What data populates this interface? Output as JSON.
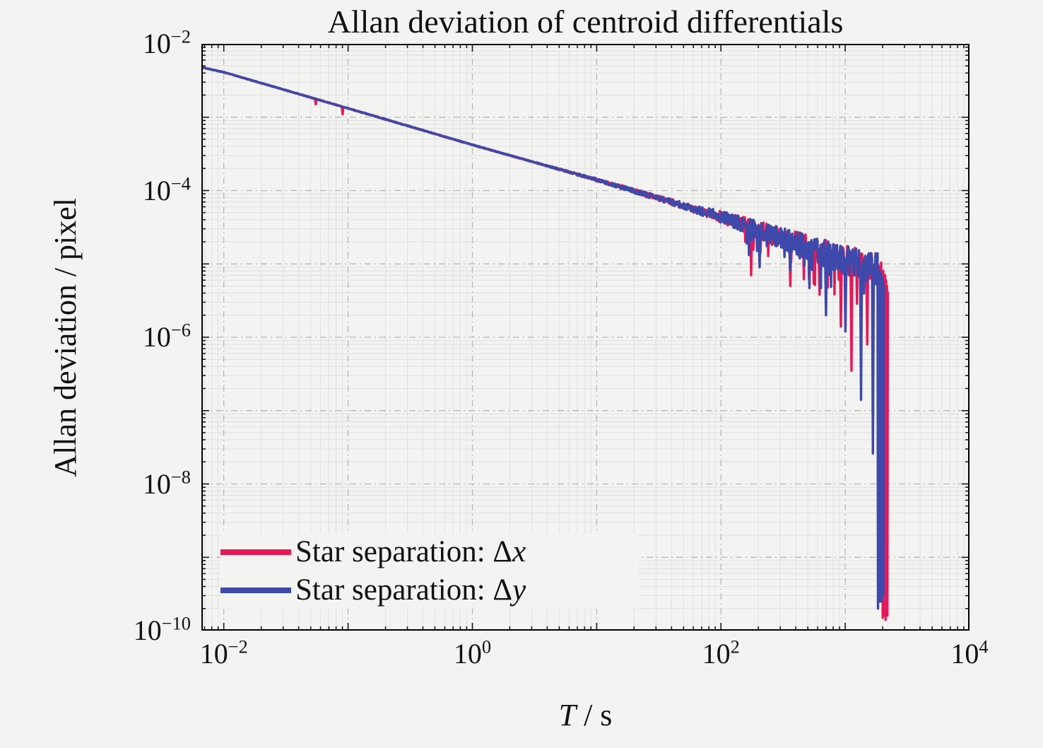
{
  "figure": {
    "background": "#f3f3f1",
    "axis_color": "#1a1a1a",
    "grid_major_color": "#b9b9b9",
    "grid_minor_color": "#e0e0e0"
  },
  "chart_data": {
    "type": "line",
    "title": "Allan deviation of centroid differentials",
    "xlabel": "T / s",
    "xlabel_var": "T",
    "xlabel_rest": " / s",
    "ylabel": "Allan deviation / pixel",
    "x_scale": "log",
    "y_scale": "log",
    "xlim": [
      0.0066,
      10000
    ],
    "ylim": [
      1e-10,
      0.01
    ],
    "grid": true,
    "legend_position": "bottom-left-inside",
    "x_ticks": [
      {
        "base": "10",
        "exp": "−2",
        "value": 0.01
      },
      {
        "base": "10",
        "exp": "0",
        "value": 1
      },
      {
        "base": "10",
        "exp": "2",
        "value": 100
      },
      {
        "base": "10",
        "exp": "4",
        "value": 10000
      }
    ],
    "y_ticks": [
      {
        "base": "10",
        "exp": "−2",
        "value": 0.01
      },
      {
        "base": "10",
        "exp": "−4",
        "value": 0.0001
      },
      {
        "base": "10",
        "exp": "−6",
        "value": 1e-06
      },
      {
        "base": "10",
        "exp": "−8",
        "value": 1e-08
      },
      {
        "base": "10",
        "exp": "−10",
        "value": 1e-10
      }
    ],
    "series": [
      {
        "name": "Star separation: Δx",
        "label_prefix": "Star separation: Δ",
        "label_var": "x",
        "color": "#e5195a",
        "seed": 7,
        "n_points": 1600,
        "t_start": 0.0066,
        "teeth_prob": 0.05,
        "anchor_points": [
          [
            0.0066,
            0.0048
          ],
          [
            0.01,
            0.0041
          ],
          [
            0.1,
            0.00132
          ],
          [
            1,
            0.00042
          ],
          [
            10,
            0.00014
          ],
          [
            100,
            4.4e-05
          ],
          [
            316,
            2.2e-05
          ],
          [
            1000,
            1.12e-05
          ],
          [
            2300,
            7.8e-06
          ]
        ],
        "noise_band": [
          [
            -2.19,
            0.004
          ],
          [
            0.5,
            0.006
          ],
          [
            1,
            0.02
          ],
          [
            1.7,
            0.045
          ],
          [
            2,
            0.08
          ],
          [
            2.5,
            0.15
          ],
          [
            3,
            0.2
          ],
          [
            3.45,
            0.24
          ]
        ],
        "spikes": [
          [
            0.055,
            0.0015
          ],
          [
            0.09,
            0.0011
          ],
          [
            175,
            7e-06
          ],
          [
            360,
            5e-06
          ],
          [
            624,
            3.8e-06
          ],
          [
            925,
            1.4e-06
          ],
          [
            1126,
            3.5e-07
          ],
          [
            1500,
            8e-07
          ]
        ],
        "collapse": [
          [
            1950,
            8e-06
          ],
          [
            1968,
            2.5e-09
          ],
          [
            1986,
            7.6e-06
          ],
          [
            2004,
            1.5e-10
          ],
          [
            2022,
            8e-06
          ],
          [
            2040,
            9e-09
          ],
          [
            2058,
            7e-06
          ],
          [
            2076,
            1.6e-10
          ],
          [
            2094,
            7e-06
          ],
          [
            2112,
            1.4e-10
          ],
          [
            2130,
            6e-06
          ],
          [
            2148,
            4e-10
          ],
          [
            2166,
            5e-06
          ],
          [
            2184,
            1.6e-10
          ],
          [
            2202,
            4.2e-06
          ]
        ]
      },
      {
        "name": "Star separation: Δy",
        "label_prefix": "Star separation: Δ",
        "label_var": "y",
        "color": "#3d49ab",
        "seed": 13,
        "n_points": 1600,
        "t_start": 0.0066,
        "teeth_prob": 0.05,
        "anchor_points": [
          [
            0.0066,
            0.0048
          ],
          [
            0.01,
            0.0041
          ],
          [
            0.1,
            0.00132
          ],
          [
            1,
            0.00042
          ],
          [
            10,
            0.00014
          ],
          [
            100,
            4.4e-05
          ],
          [
            316,
            2.2e-05
          ],
          [
            1000,
            1.12e-05
          ],
          [
            2300,
            7.8e-06
          ]
        ],
        "noise_band": [
          [
            -2.19,
            0.004
          ],
          [
            0.5,
            0.006
          ],
          [
            1,
            0.02
          ],
          [
            1.7,
            0.045
          ],
          [
            2,
            0.08
          ],
          [
            2.5,
            0.15
          ],
          [
            3,
            0.2
          ],
          [
            3.45,
            0.24
          ]
        ],
        "spikes": [
          [
            205,
            9e-06
          ],
          [
            700,
            2e-06
          ],
          [
            1000,
            1.2e-06
          ],
          [
            1341,
            1.4e-07
          ],
          [
            1666,
            2.6e-08
          ]
        ],
        "collapse": [
          [
            1820,
            9e-06
          ],
          [
            1836,
            2e-10
          ],
          [
            1852,
            8e-06
          ],
          [
            1868,
            1.3e-09
          ],
          [
            1884,
            8e-06
          ],
          [
            1900,
            2.5e-10
          ],
          [
            1916,
            7.5e-06
          ],
          [
            1932,
            2e-09
          ],
          [
            1948,
            7e-06
          ],
          [
            1964,
            2.5e-10
          ],
          [
            1980,
            6.5e-06
          ],
          [
            1996,
            1.8e-09
          ],
          [
            2012,
            6e-06
          ],
          [
            2028,
            3e-10
          ],
          [
            2044,
            5e-06
          ]
        ]
      }
    ]
  }
}
